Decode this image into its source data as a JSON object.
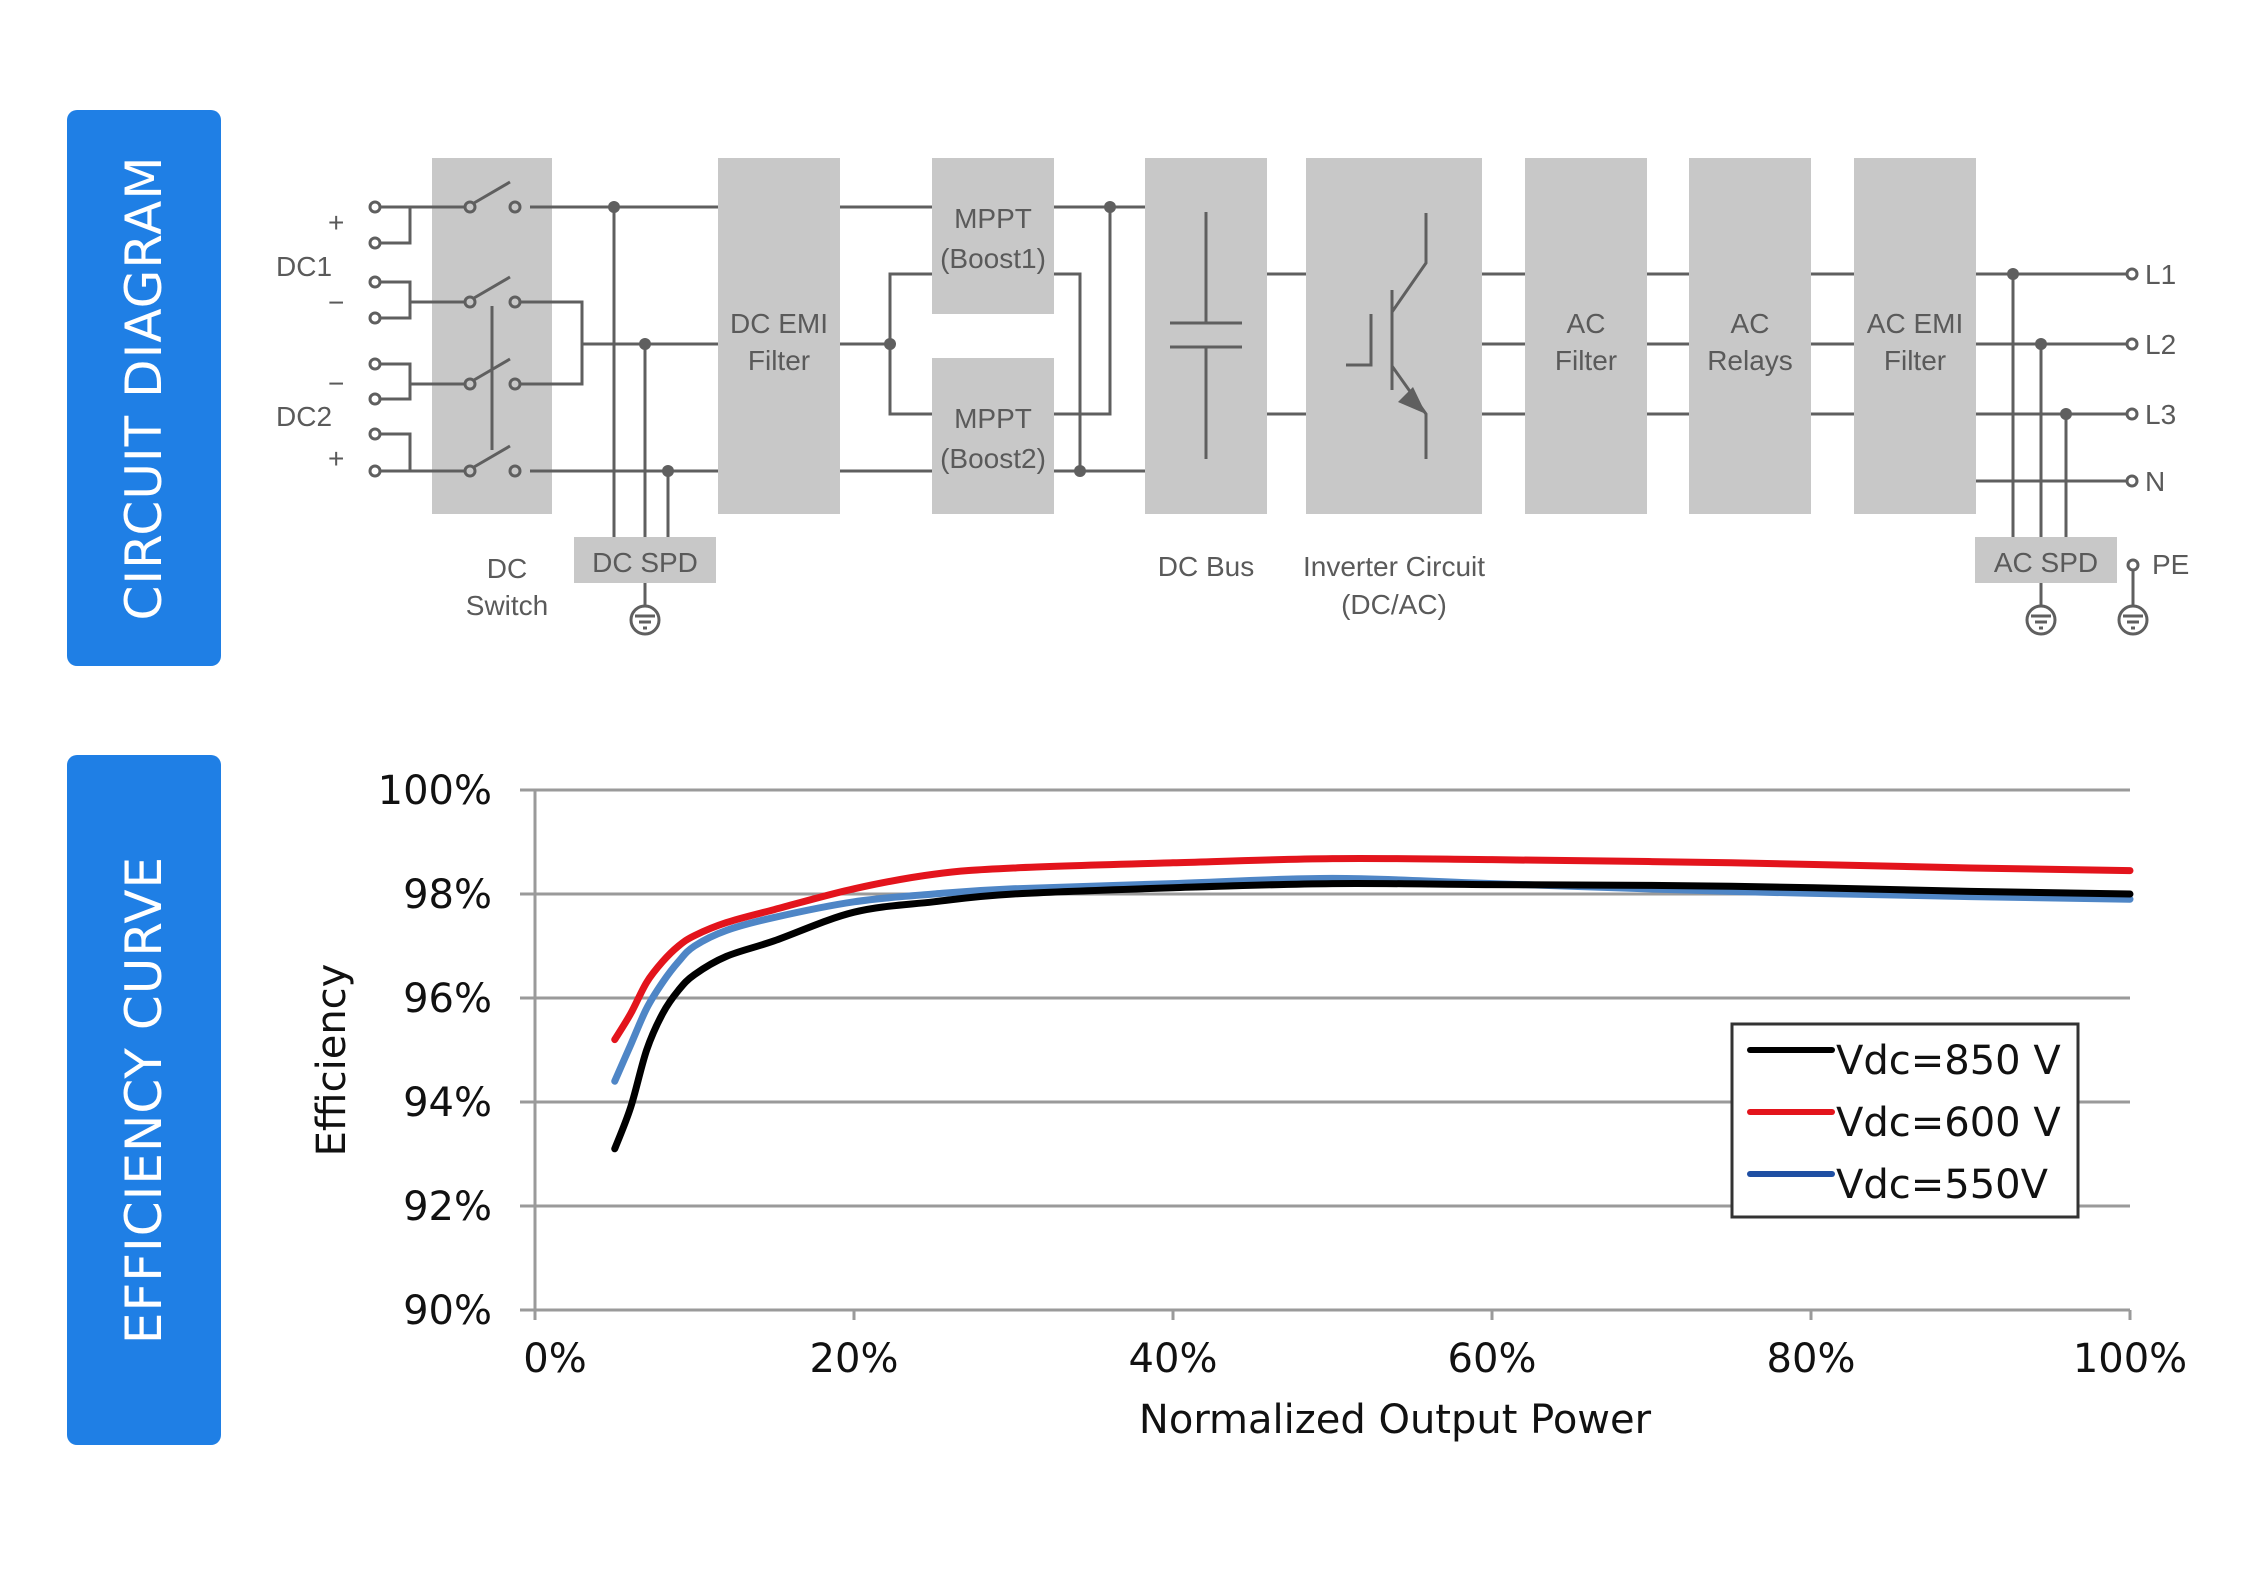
{
  "tabs": {
    "circuit": "CIRCUIT DIAGRAM",
    "efficiency": "EFFICIENCY CURVE"
  },
  "diagram": {
    "inputs": {
      "dc1": "DC1",
      "dc2": "DC2",
      "plus": "+",
      "minus": "−"
    },
    "blocks": {
      "dc_switch": [
        "DC",
        "Switch"
      ],
      "dc_spd": "DC SPD",
      "dc_emi": [
        "DC EMI",
        "Filter"
      ],
      "mppt1": [
        "MPPT",
        "(Boost1)"
      ],
      "mppt2": [
        "MPPT",
        "(Boost2)"
      ],
      "dc_bus": "DC Bus",
      "inverter": [
        "Inverter Circuit",
        "(DC/AC)"
      ],
      "ac_filter": [
        "AC",
        "Filter"
      ],
      "ac_relays": [
        "AC",
        "Relays"
      ],
      "ac_emi": [
        "AC EMI",
        "Filter"
      ],
      "ac_spd": "AC SPD"
    },
    "outputs": [
      "L1",
      "L2",
      "L3",
      "N",
      "PE"
    ],
    "colors": {
      "block": "#c8c8c8",
      "wire": "#5f5f5f",
      "text": "#5a5a5a",
      "tab": "#1f7fe5"
    }
  },
  "chart_data": {
    "type": "line",
    "title": "",
    "xlabel": "Normalized Output Power",
    "ylabel": "Efficiency",
    "xlim": [
      0,
      100
    ],
    "ylim": [
      90,
      100
    ],
    "xticks": [
      "0%",
      "20%",
      "40%",
      "60%",
      "80%",
      "100%"
    ],
    "xtick_values": [
      0,
      20,
      40,
      60,
      80,
      100
    ],
    "yticks": [
      "90%",
      "92%",
      "94%",
      "96%",
      "98%",
      "100%"
    ],
    "ytick_values": [
      90,
      92,
      94,
      96,
      98,
      100
    ],
    "grid": "horizontal",
    "legend_position": "right-center",
    "series": [
      {
        "name": "Vdc=850 V",
        "color": "#000000",
        "x": [
          5,
          6,
          7,
          8,
          9,
          10,
          12,
          15,
          20,
          25,
          30,
          40,
          50,
          60,
          75,
          90,
          100
        ],
        "y": [
          93.1,
          93.9,
          95.0,
          95.7,
          96.15,
          96.45,
          96.8,
          97.1,
          97.65,
          97.85,
          98.0,
          98.12,
          98.2,
          98.18,
          98.15,
          98.05,
          98.0
        ]
      },
      {
        "name": "Vdc=600 V",
        "color": "#e3141c",
        "x": [
          5,
          6,
          7,
          8,
          9,
          10,
          12,
          15,
          20,
          25,
          30,
          40,
          50,
          60,
          75,
          90,
          100
        ],
        "y": [
          95.2,
          95.7,
          96.3,
          96.7,
          97.0,
          97.2,
          97.45,
          97.7,
          98.1,
          98.38,
          98.5,
          98.6,
          98.68,
          98.66,
          98.6,
          98.5,
          98.45
        ]
      },
      {
        "name": "Vdc=550V",
        "color": "#4f86c6",
        "x": [
          5,
          6,
          7,
          8,
          9,
          10,
          12,
          15,
          20,
          25,
          30,
          40,
          50,
          60,
          75,
          90,
          100
        ],
        "y": [
          94.4,
          95.1,
          95.8,
          96.3,
          96.7,
          97.0,
          97.3,
          97.55,
          97.85,
          98.0,
          98.1,
          98.2,
          98.3,
          98.2,
          98.05,
          97.95,
          97.9
        ]
      }
    ]
  }
}
